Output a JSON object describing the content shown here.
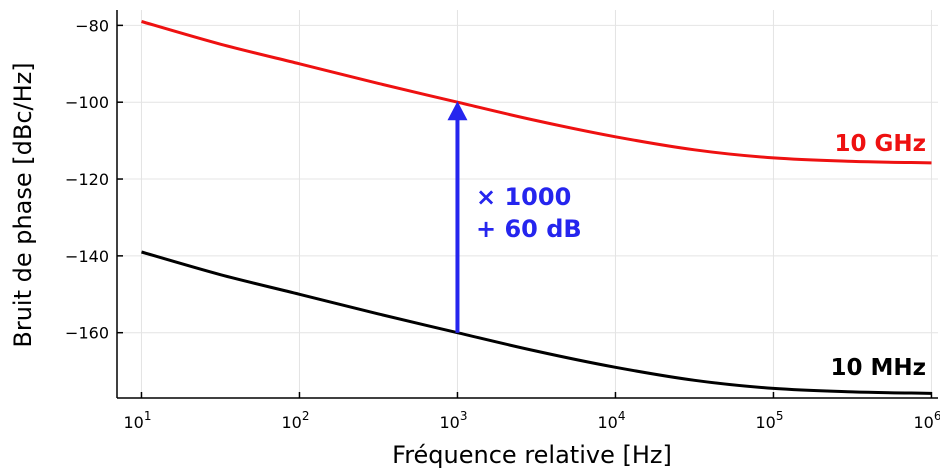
{
  "chart_data": {
    "type": "line",
    "xlabel": "Fréquence relative [Hz]",
    "ylabel": "Bruit de phase [dBc/Hz]",
    "xscale": "log",
    "xlim": [
      7,
      1100000
    ],
    "ylim": [
      -177,
      -76
    ],
    "grid": true,
    "x_ticks": [
      {
        "value": 10,
        "base": "10",
        "exp": "1"
      },
      {
        "value": 100,
        "base": "10",
        "exp": "2"
      },
      {
        "value": 1000,
        "base": "10",
        "exp": "3"
      },
      {
        "value": 10000,
        "base": "10",
        "exp": "4"
      },
      {
        "value": 100000,
        "base": "10",
        "exp": "5"
      },
      {
        "value": 1000000,
        "base": "10",
        "exp": "6"
      }
    ],
    "y_ticks": [
      {
        "value": -80,
        "label": "−80"
      },
      {
        "value": -100,
        "label": "−100"
      },
      {
        "value": -120,
        "label": "−120"
      },
      {
        "value": -140,
        "label": "−140"
      },
      {
        "value": -160,
        "label": "−160"
      }
    ],
    "series": [
      {
        "name": "10 GHz",
        "color": "#ee1111",
        "x": [
          10,
          31.6,
          100,
          316,
          1000,
          3162,
          10000,
          31623,
          100000,
          316228,
          1000000
        ],
        "y": [
          -79,
          -84.9,
          -90,
          -95.1,
          -100,
          -104.8,
          -109,
          -112.4,
          -114.5,
          -115.4,
          -115.8
        ]
      },
      {
        "name": "10 MHz",
        "color": "#000000",
        "x": [
          10,
          31.6,
          100,
          316,
          1000,
          3162,
          10000,
          31623,
          100000,
          316228,
          1000000
        ],
        "y": [
          -139,
          -144.9,
          -150,
          -155.1,
          -160,
          -164.8,
          -169,
          -172.4,
          -174.5,
          -175.4,
          -175.8
        ]
      }
    ],
    "annotation": {
      "line1": "× 1000",
      "line2": "+ 60 dB",
      "color": "#2525ee",
      "arrow_x": 1000,
      "arrow_from_y": -160,
      "arrow_to_y": -100
    }
  }
}
